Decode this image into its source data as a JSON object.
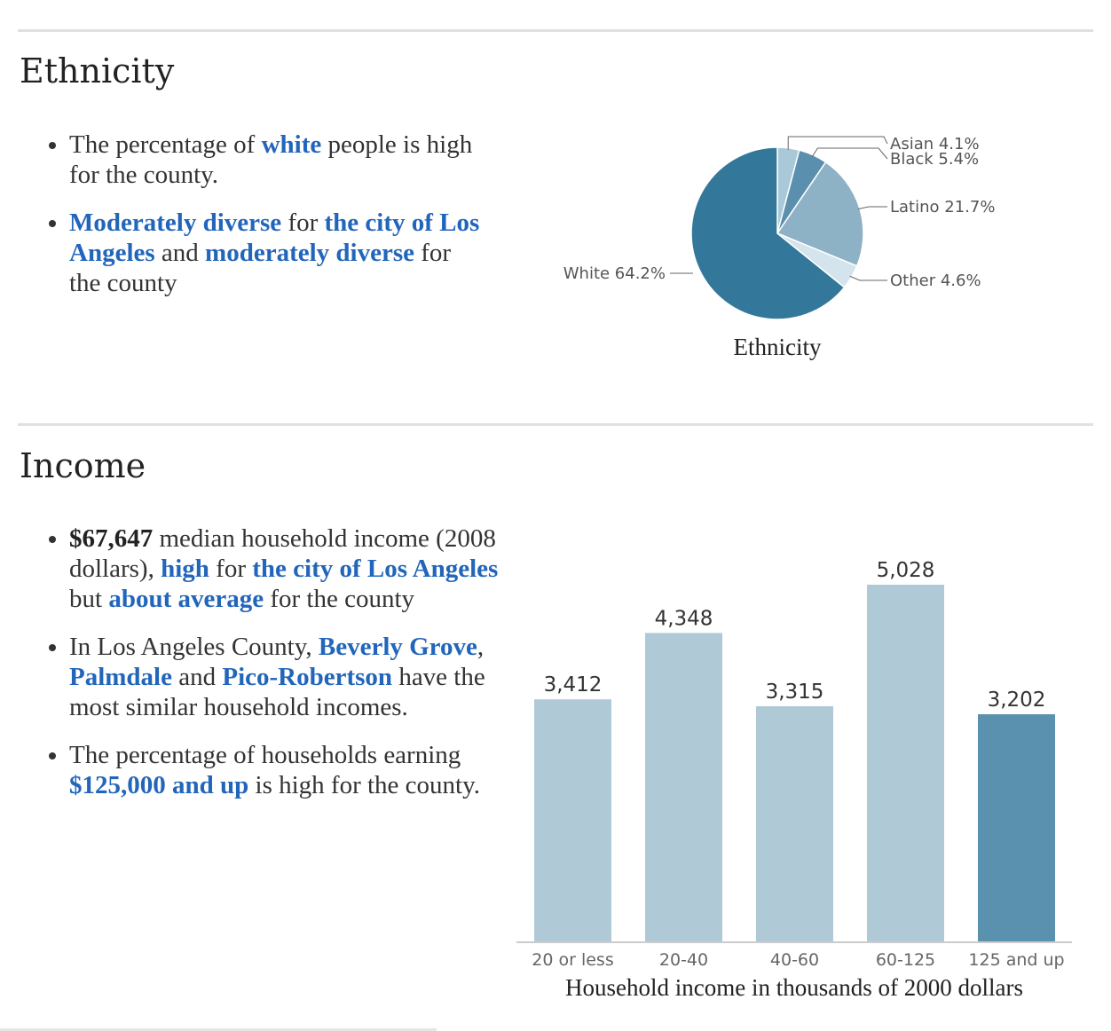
{
  "ethnicity": {
    "heading": "Ethnicity",
    "bullet1": {
      "t1": "The percentage of ",
      "link1": "white",
      "t2": " people is high for the county."
    },
    "bullet2": {
      "link1": "Moderately diverse",
      "t1": " for ",
      "link2": "the city of Los Angeles",
      "t2": " and ",
      "link3": "moderately diverse",
      "t3": " for the county"
    }
  },
  "income": {
    "heading": "Income",
    "bullet1": {
      "bold1": "$67,647",
      "t1": " median household income (2008 dollars), ",
      "link1": "high",
      "t2": " for ",
      "link2": "the city of Los Angeles",
      "t3": " but ",
      "link3": "about average",
      "t4": " for the county"
    },
    "bullet2": {
      "t1": "In Los Angeles County, ",
      "link1": "Beverly Grove",
      "t2": ", ",
      "link2": "Palmdale",
      "t3": " and ",
      "link3": "Pico-Robertson",
      "t4": " have the most similar household incomes."
    },
    "bullet3": {
      "t1": "The percentage of households earning ",
      "link1": "$125,000 and up",
      "t2": " is high for the county."
    }
  },
  "chart_data": [
    {
      "type": "pie",
      "title": "Ethnicity",
      "slices": [
        {
          "label": "Asian",
          "value": 4.1,
          "display": "Asian 4.1%",
          "color": "#a9c9d8"
        },
        {
          "label": "Black",
          "value": 5.4,
          "display": "Black 5.4%",
          "color": "#5a8fae"
        },
        {
          "label": "Latino",
          "value": 21.7,
          "display": "Latino 21.7%",
          "color": "#8db1c5"
        },
        {
          "label": "Other",
          "value": 4.6,
          "display": "Other 4.6%",
          "color": "#d4e4ec"
        },
        {
          "label": "White",
          "value": 64.2,
          "display": "White 64.2%",
          "color": "#33779a"
        }
      ]
    },
    {
      "type": "bar",
      "categories": [
        "20 or less",
        "20-40",
        "40-60",
        "60-125",
        "125 and up"
      ],
      "values": [
        3412,
        4348,
        3315,
        5028,
        3202
      ],
      "value_labels": [
        "3,412",
        "4,348",
        "3,315",
        "5,028",
        "3,202"
      ],
      "xlabel": "Household income in thousands of 2000 dollars",
      "colors": [
        "#afc9d6",
        "#afc9d6",
        "#afc9d6",
        "#afc9d6",
        "#5a91ae"
      ],
      "ylim": [
        0,
        5028
      ]
    }
  ]
}
